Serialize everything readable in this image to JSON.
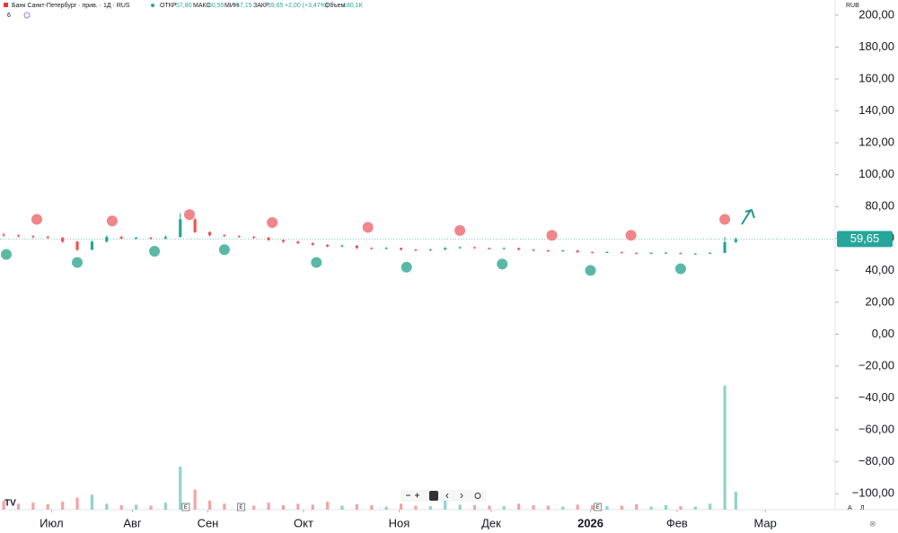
{
  "chart_data": {
    "type": "candlestick",
    "header": {
      "symbol": "Банк Санкт-Петербург · прив. · 1Д · RUS",
      "open_label": "ОТКР",
      "open": "57,80",
      "high_label": "МАКС",
      "high": "60,55",
      "low_label": "МИН",
      "low": "57,15",
      "close_label": "ЗАКР",
      "close": "59,65",
      "change": "+2,00 (+3,47%)",
      "volume_label": "Объем",
      "volume": "180,1K",
      "indicators": "6",
      "currency": "RUB"
    },
    "x": [
      0,
      4,
      8,
      12,
      16,
      20,
      24,
      28,
      32,
      36,
      40,
      44,
      48,
      52,
      56,
      60,
      64,
      68,
      72,
      76,
      80,
      84,
      88,
      92,
      96,
      100,
      104,
      108,
      112,
      116,
      120,
      124,
      128,
      132,
      136,
      140,
      144,
      148,
      152,
      156,
      160,
      164,
      168,
      172,
      176,
      180,
      184,
      188,
      192,
      196,
      199
    ],
    "ohlc": [
      [
        62.5,
        63.5,
        61,
        62
      ],
      [
        62,
        62.5,
        60.8,
        61.5
      ],
      [
        61.5,
        62,
        60.2,
        61
      ],
      [
        61,
        61.8,
        59.8,
        60.5
      ],
      [
        60.5,
        61,
        57.2,
        58
      ],
      [
        58,
        58.5,
        52,
        53
      ],
      [
        53,
        58.8,
        52.5,
        58
      ],
      [
        58,
        62,
        57.5,
        61
      ],
      [
        61,
        61.8,
        59.5,
        60
      ],
      [
        60,
        61,
        59.4,
        60.5
      ],
      [
        60.5,
        61,
        59.2,
        60
      ],
      [
        60,
        62,
        59.5,
        61
      ],
      [
        61,
        76,
        60.5,
        72
      ],
      [
        72,
        73,
        63.5,
        64
      ],
      [
        64,
        64.5,
        61.2,
        62
      ],
      [
        62,
        62.8,
        61,
        61.5
      ],
      [
        61.5,
        62,
        60.5,
        61
      ],
      [
        61,
        61.6,
        60,
        60.5
      ],
      [
        60.5,
        61,
        58.5,
        59
      ],
      [
        59,
        59.5,
        57.2,
        58
      ],
      [
        58,
        58.6,
        56.4,
        57
      ],
      [
        57,
        57.5,
        55.5,
        56
      ],
      [
        56,
        56.4,
        54.5,
        55
      ],
      [
        55,
        56.2,
        54.6,
        55.5
      ],
      [
        55.5,
        55.8,
        53.4,
        54
      ],
      [
        54,
        54.5,
        53,
        53.5
      ],
      [
        53.5,
        54.6,
        53.2,
        54
      ],
      [
        54,
        54.3,
        52.5,
        53
      ],
      [
        53,
        53.4,
        52,
        52.5
      ],
      [
        52.5,
        53.6,
        52.2,
        53
      ],
      [
        53,
        54.6,
        52.8,
        54
      ],
      [
        54,
        55,
        53.6,
        54.5
      ],
      [
        54.5,
        54.9,
        53.6,
        54
      ],
      [
        54,
        54.3,
        53,
        53.5
      ],
      [
        53.5,
        54.4,
        53.2,
        54
      ],
      [
        54,
        54.2,
        52.6,
        53
      ],
      [
        53,
        53.3,
        52,
        52.5
      ],
      [
        52.5,
        52.8,
        51.5,
        52
      ],
      [
        52,
        52.9,
        51.7,
        52.5
      ],
      [
        52.5,
        52.7,
        51,
        51.5
      ],
      [
        51.5,
        51.8,
        50.6,
        51
      ],
      [
        51,
        52,
        50.8,
        51.5
      ],
      [
        51.5,
        51.7,
        50.6,
        51
      ],
      [
        51,
        51.3,
        50,
        50.5
      ],
      [
        50.5,
        51.3,
        50.2,
        51
      ],
      [
        51,
        51.5,
        50.6,
        51
      ],
      [
        51,
        51.2,
        50,
        50.5
      ],
      [
        50.5,
        50.9,
        50.1,
        50.5
      ],
      [
        50.5,
        51.4,
        50.3,
        51
      ],
      [
        51,
        61,
        50.8,
        57.65
      ],
      [
        57.8,
        60.55,
        57.15,
        59.65
      ]
    ],
    "volumes": [
      90,
      60,
      70,
      55,
      80,
      120,
      150,
      60,
      45,
      50,
      40,
      70,
      430,
      200,
      90,
      60,
      50,
      40,
      70,
      45,
      60,
      50,
      80,
      40,
      55,
      45,
      30,
      60,
      40,
      35,
      90,
      50,
      45,
      40,
      35,
      60,
      45,
      40,
      30,
      50,
      45,
      35,
      40,
      55,
      30,
      45,
      35,
      30,
      60,
      1240,
      180
    ],
    "vlim": [
      0,
      1300
    ],
    "colors": {
      "up": "#26a69a",
      "down": "#ef5350",
      "vol_up": "#8fd3cc",
      "vol_down": "#f5a3a1"
    },
    "sell_signals": {
      "x": [
        9,
        29.5,
        50.5,
        73,
        99,
        124,
        149,
        170.5,
        196
      ],
      "y": [
        72,
        71,
        75,
        70,
        67,
        65,
        62,
        62,
        72
      ],
      "color": "#f0858c"
    },
    "buy_signals": {
      "x": [
        0.7,
        20,
        41,
        60,
        85,
        109.5,
        135.5,
        159.5,
        184
      ],
      "y": [
        50,
        45,
        52,
        53,
        45,
        42,
        44,
        40,
        41
      ],
      "color": "#5bb8a6"
    },
    "earnings": {
      "label": "E",
      "x": [
        49.5,
        64.5,
        161.5
      ]
    },
    "last_price": {
      "value": 59.65,
      "label": "59,65"
    },
    "xlim": [
      -1,
      226
    ],
    "xticks": [
      {
        "value": 13,
        "label": "Июл"
      },
      {
        "value": 35,
        "label": "Авг"
      },
      {
        "value": 55.5,
        "label": "Сен"
      },
      {
        "value": 81.5,
        "label": "Окт"
      },
      {
        "value": 107.5,
        "label": "Ноя"
      },
      {
        "value": 132.5,
        "label": "Дек"
      },
      {
        "value": 159.5,
        "label": "2026"
      },
      {
        "value": 183,
        "label": "Фев"
      },
      {
        "value": 207,
        "label": "Мар"
      }
    ],
    "ylim": [
      -110,
      209.5
    ],
    "yticks": [
      {
        "value": 200,
        "label": "200,00"
      },
      {
        "value": 180,
        "label": "180,00"
      },
      {
        "value": 160,
        "label": "160,00"
      },
      {
        "value": 140,
        "label": "140,00"
      },
      {
        "value": 120,
        "label": "120,00"
      },
      {
        "value": 100,
        "label": "100,00"
      },
      {
        "value": 80,
        "label": "80,00"
      },
      {
        "value": 60,
        "label": "60,00"
      },
      {
        "value": 40,
        "label": "40,00"
      },
      {
        "value": 20,
        "label": "20,00"
      },
      {
        "value": 0,
        "label": "0,00"
      },
      {
        "value": -20,
        "label": "−20,00"
      },
      {
        "value": -40,
        "label": "−40,00"
      },
      {
        "value": -60,
        "label": "−60,00"
      },
      {
        "value": -80,
        "label": "−80,00"
      },
      {
        "value": -100,
        "label": "−100,00"
      }
    ],
    "scale_controls": {
      "auto": "А",
      "log": "Л"
    }
  }
}
